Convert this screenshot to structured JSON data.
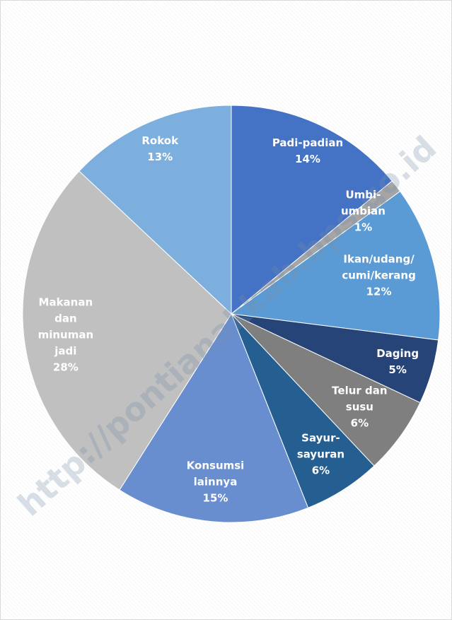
{
  "chart_data": {
    "type": "pie",
    "categories": [
      "Padi-padian",
      "Umbi-\numbian",
      "Ikan/udang/\ncumi/kerang",
      "Daging",
      "Telur dan\nsusu",
      "Sayur-\nsayuran",
      "Konsumsi\nlainnya",
      "Makanan\ndan\nminuman\njadi",
      "Rokok"
    ],
    "values": [
      14,
      1,
      12,
      5,
      6,
      6,
      15,
      28,
      13
    ],
    "value_labels": [
      "14%",
      "1%",
      "12%",
      "5%",
      "6%",
      "6%",
      "15%",
      "28%",
      "13%"
    ],
    "colors": [
      "#4472c4",
      "#a5a5a5",
      "#5b9bd5",
      "#264478",
      "#7f7f7f",
      "#255e91",
      "#698ed0",
      "#c0c0c0",
      "#7cafdd"
    ],
    "watermark": "http://pontianakkab.bps.go.id"
  }
}
